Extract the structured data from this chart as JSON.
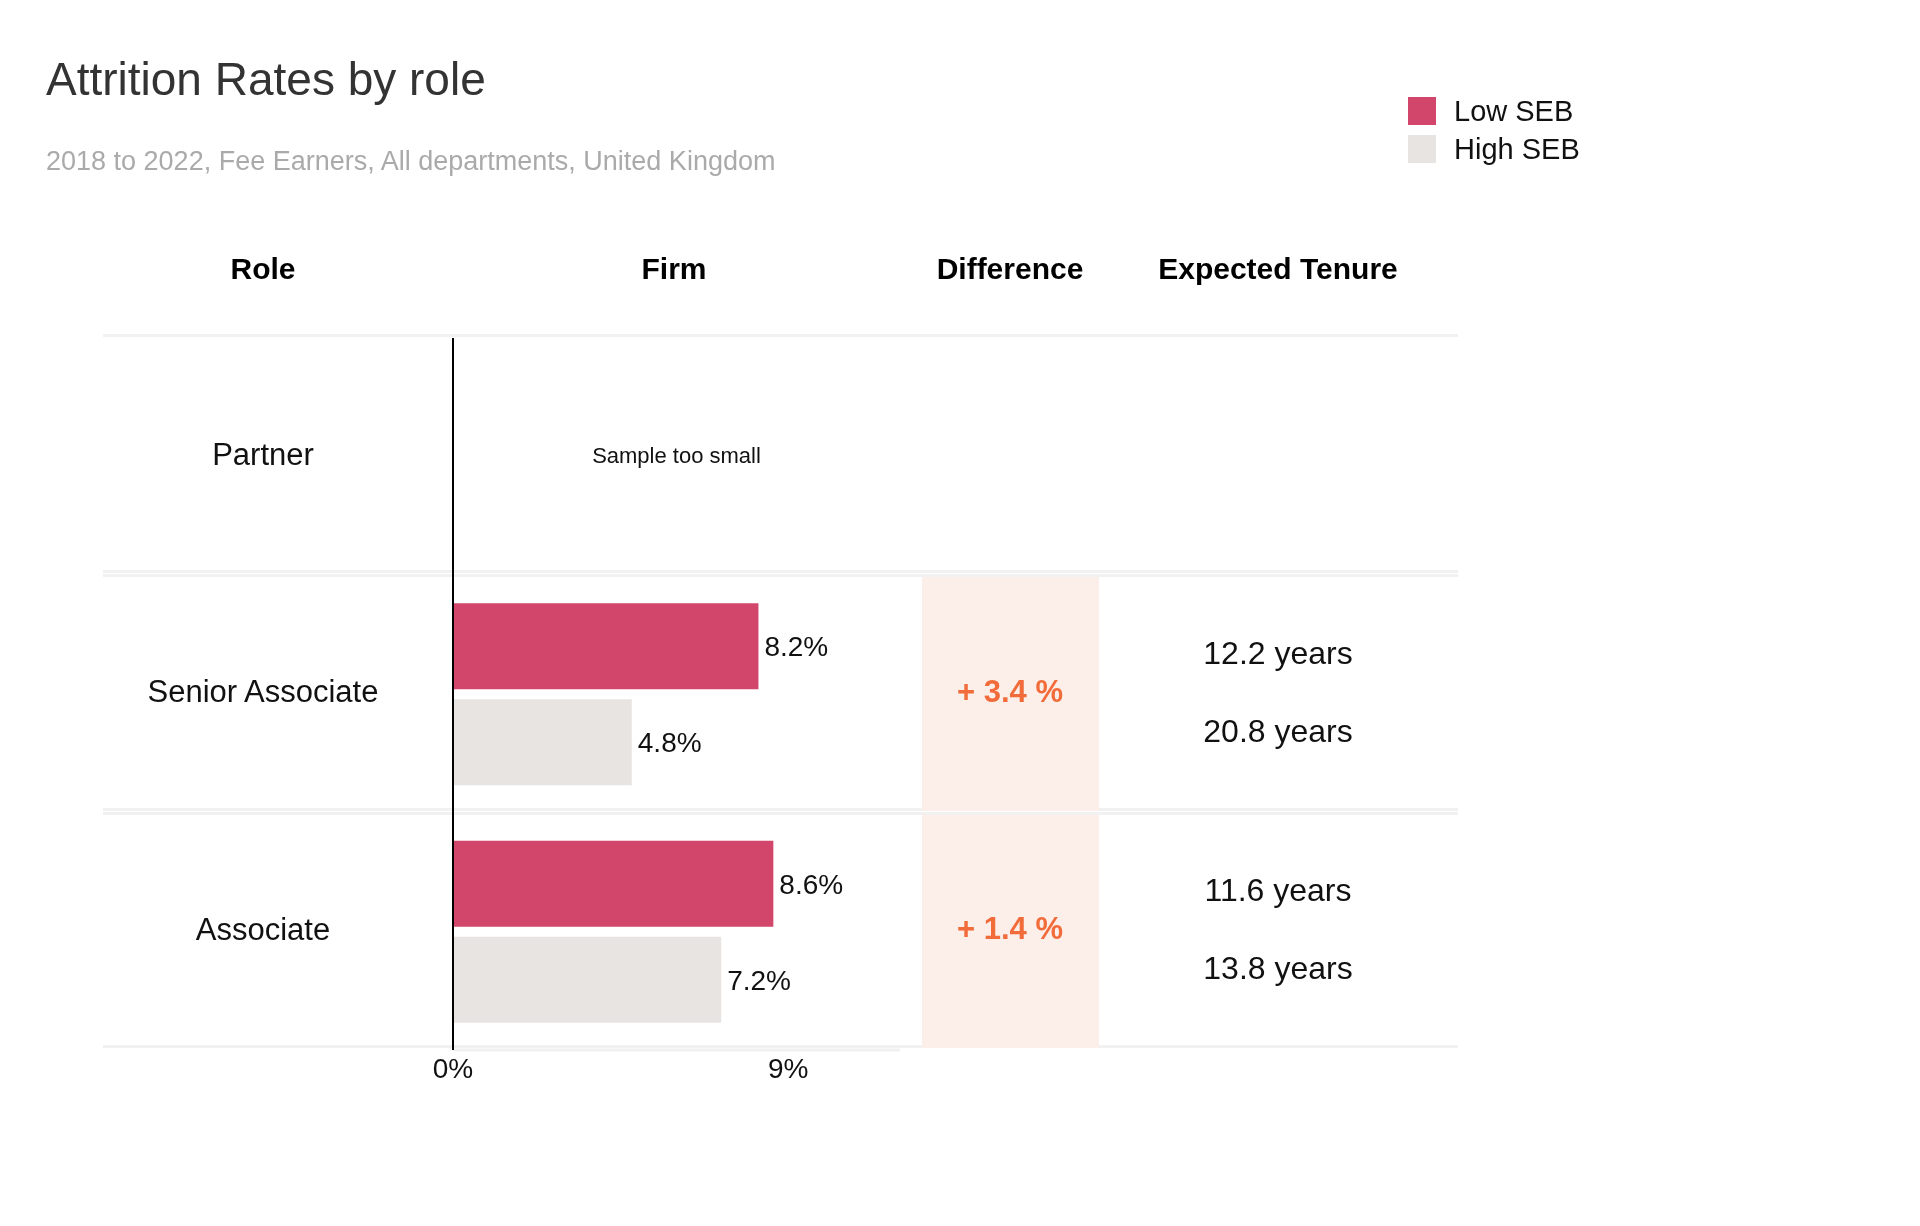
{
  "chart_data": {
    "type": "bar",
    "orientation": "horizontal",
    "title": "Attrition Rates by role",
    "subtitle": "2018 to 2022, Fee Earners, All departments, United Kingdom",
    "ylabel": "Role",
    "xlabel": "Firm",
    "categories": [
      "Partner",
      "Senior Associate",
      "Associate"
    ],
    "series": [
      {
        "name": "Low SEB",
        "color": "#d1466a",
        "values": [
          null,
          8.2,
          8.6
        ],
        "value_labels": [
          null,
          "8.2%",
          "8.6%"
        ]
      },
      {
        "name": "High SEB",
        "color": "#e8e4e1",
        "values": [
          null,
          4.8,
          7.2
        ],
        "value_labels": [
          null,
          "4.8%",
          "7.2%"
        ]
      }
    ],
    "xlim": [
      0,
      12
    ],
    "xticks": [
      {
        "value": 0,
        "label": "0%"
      },
      {
        "value": 9,
        "label": "9%"
      }
    ],
    "legend": "top right",
    "annotations": [
      "Difference",
      "Expected Tenure",
      "Sample too small",
      "+ 3.4 %",
      "12.2 years",
      "20.8 years",
      "+ 1.4 %",
      "11.6 years",
      "13.8 years"
    ]
  }
}
